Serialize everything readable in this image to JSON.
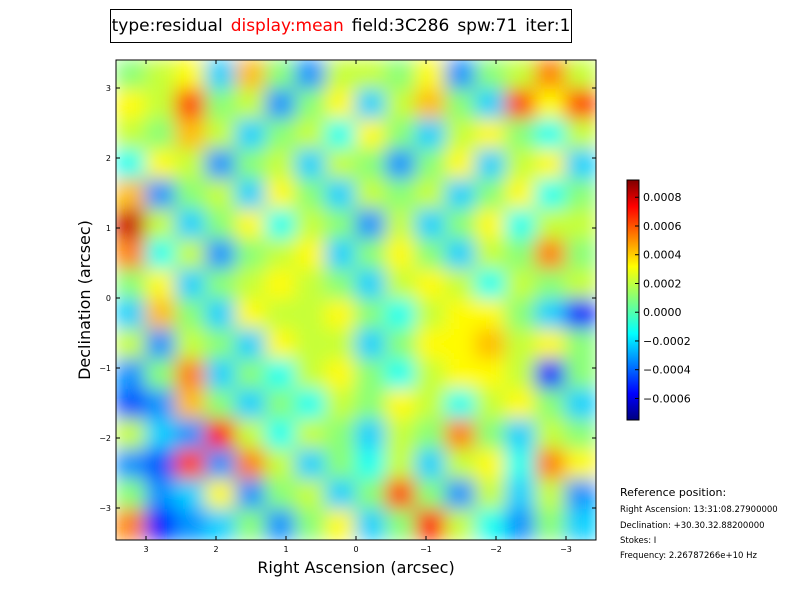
{
  "title": {
    "type": "type:residual",
    "display": "display:mean",
    "field": "field:3C286",
    "spw": "spw:71",
    "iter": "iter:1"
  },
  "colors": {
    "display_highlight": "#ff0000"
  },
  "reference": {
    "heading": "Reference position:",
    "ra": "Right Ascension: 13:31:08.27900000",
    "dec": "Declination: +30.30.32.88200000",
    "stokes": "Stokes: I",
    "frequency": "Frequency: 2.26787266e+10 Hz"
  },
  "chart_data": {
    "type": "heatmap",
    "title": "",
    "xlabel": "Right Ascension (arcsec)",
    "ylabel": "Declination (arcsec)",
    "xlim": [
      3.44,
      -3.44
    ],
    "ylim": [
      -3.43,
      3.43
    ],
    "xticks": [
      "3",
      "2",
      "1",
      "0",
      "−1",
      "−2",
      "−3"
    ],
    "xtick_values": [
      3,
      2,
      1,
      0,
      -1,
      -2,
      -3
    ],
    "yticks": [
      "3",
      "2",
      "1",
      "0",
      "−1",
      "−2",
      "−3"
    ],
    "ytick_values": [
      3,
      2,
      1,
      0,
      -1,
      -2,
      -3
    ],
    "colormap": "jet",
    "colorbar": {
      "range": [
        -0.00075,
        0.00092
      ],
      "ticks": [
        "0.0008",
        "0.0006",
        "0.0004",
        "0.0002",
        "0.0000",
        "−0.0002",
        "−0.0004",
        "−0.0006"
      ],
      "tick_values": [
        0.0008,
        0.0006,
        0.0004,
        0.0002,
        0,
        -0.0002,
        -0.0004,
        -0.0006
      ]
    },
    "values_scale": 0.0001,
    "values": [
      [
        1,
        2,
        3,
        -2,
        4,
        1,
        -3,
        2,
        2,
        1,
        3,
        -3,
        1,
        2,
        5,
        2
      ],
      [
        3,
        2,
        6,
        1,
        2,
        -3,
        1,
        3,
        -2,
        2,
        4,
        1,
        -2,
        6,
        3,
        6
      ],
      [
        2,
        1,
        4,
        2,
        -2,
        1,
        2,
        -1,
        3,
        1,
        -2,
        2,
        3,
        1,
        -1,
        2
      ],
      [
        -1,
        3,
        2,
        -3,
        1,
        2,
        -2,
        2,
        1,
        -3,
        1,
        3,
        -2,
        2,
        3,
        -2
      ],
      [
        4,
        -3,
        1,
        2,
        -2,
        3,
        1,
        -2,
        2,
        1,
        2,
        -2,
        1,
        3,
        -1,
        1
      ],
      [
        8,
        2,
        -2,
        1,
        3,
        -1,
        2,
        1,
        -3,
        2,
        -2,
        1,
        3,
        -1,
        2,
        2
      ],
      [
        5,
        -1,
        2,
        -3,
        1,
        2,
        3,
        -2,
        1,
        3,
        1,
        -2,
        2,
        1,
        5,
        1
      ],
      [
        1,
        3,
        -2,
        1,
        2,
        3,
        2,
        1,
        -2,
        2,
        3,
        2,
        -1,
        2,
        1,
        2
      ],
      [
        -2,
        4,
        1,
        -2,
        3,
        2,
        2,
        3,
        1,
        -1,
        2,
        3,
        3,
        1,
        -2,
        -5
      ],
      [
        2,
        -3,
        2,
        1,
        -2,
        3,
        2,
        2,
        -2,
        1,
        3,
        3,
        4,
        2,
        3,
        1
      ],
      [
        -3,
        1,
        5,
        -2,
        1,
        -1,
        2,
        3,
        1,
        -1,
        2,
        3,
        3,
        2,
        -5,
        1
      ],
      [
        -4,
        -3,
        4,
        1,
        -2,
        1,
        -1,
        2,
        1,
        3,
        2,
        -1,
        2,
        3,
        1,
        -2
      ],
      [
        2,
        -2,
        -3,
        7,
        2,
        -1,
        2,
        1,
        -2,
        2,
        1,
        5,
        1,
        -2,
        2,
        1
      ],
      [
        -3,
        -4,
        6,
        -3,
        5,
        2,
        -2,
        1,
        -1,
        2,
        -2,
        2,
        3,
        -1,
        5,
        3
      ],
      [
        1,
        -3,
        -2,
        3,
        -3,
        1,
        2,
        -2,
        1,
        6,
        1,
        -3,
        2,
        -2,
        2,
        -3
      ],
      [
        5,
        -5,
        -3,
        -2,
        1,
        -3,
        1,
        3,
        -2,
        1,
        7,
        2,
        -1,
        -3,
        1,
        -2
      ]
    ]
  }
}
